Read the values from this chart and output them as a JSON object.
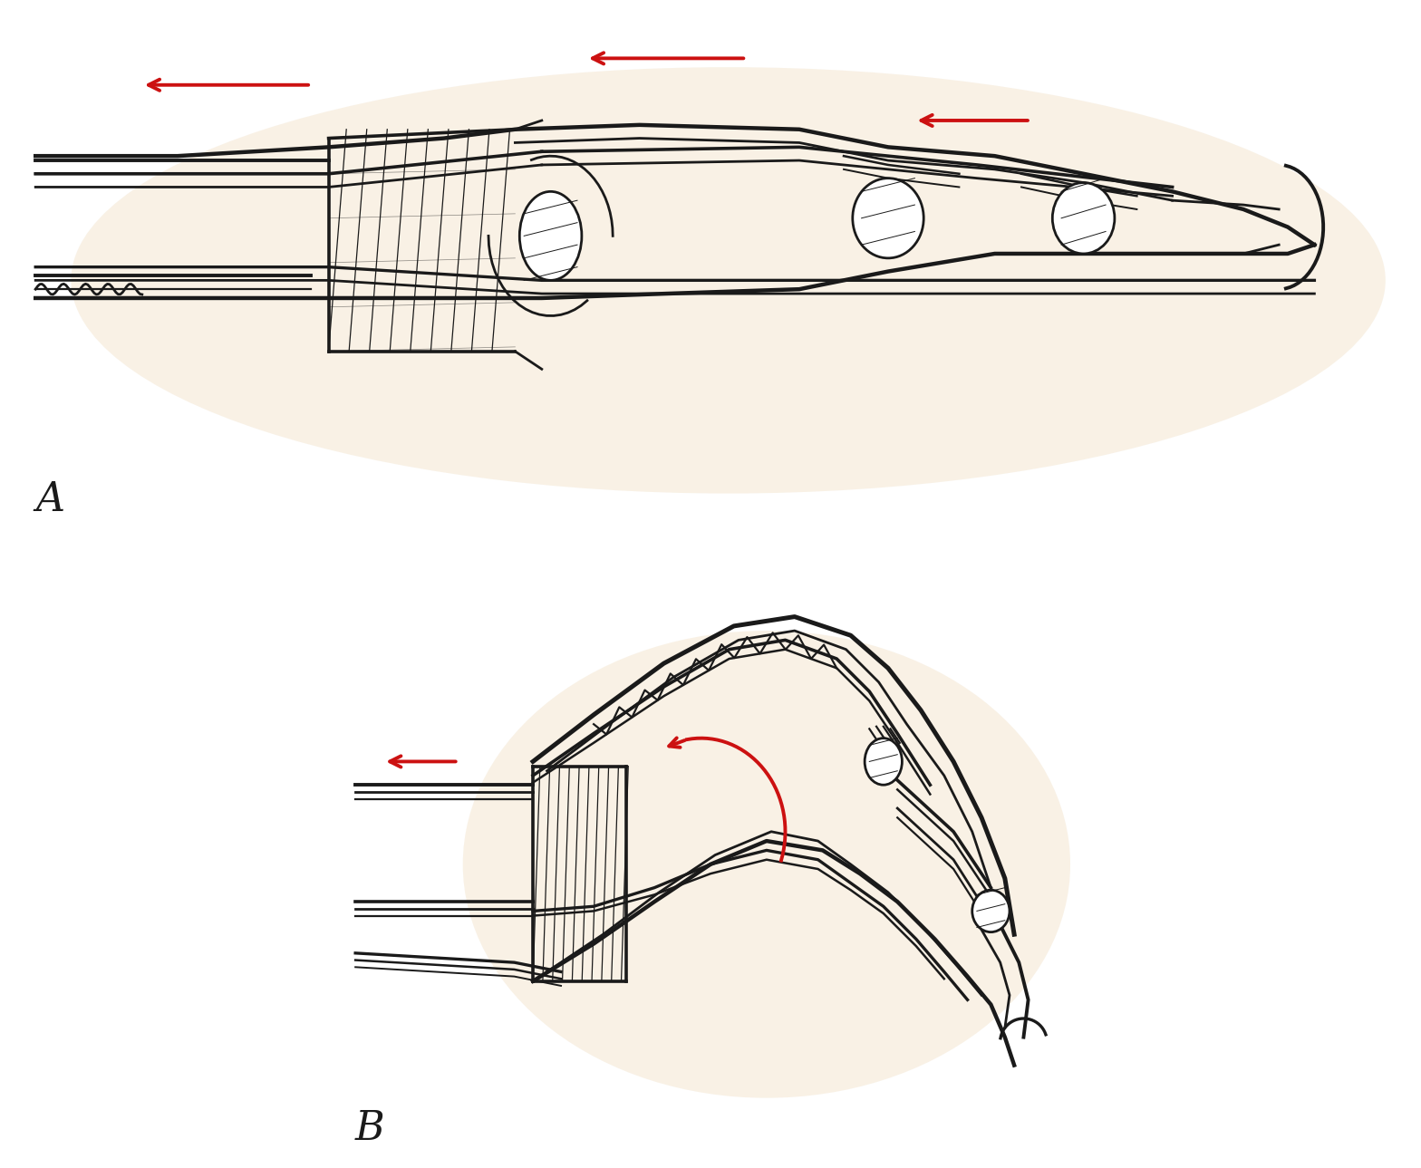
{
  "bg": "#ffffff",
  "glow": "#f2dfc0",
  "lc": "#1a1a1a",
  "ac": "#cc1111",
  "lw": 2.0,
  "alw": 2.8,
  "label_fs": 32
}
